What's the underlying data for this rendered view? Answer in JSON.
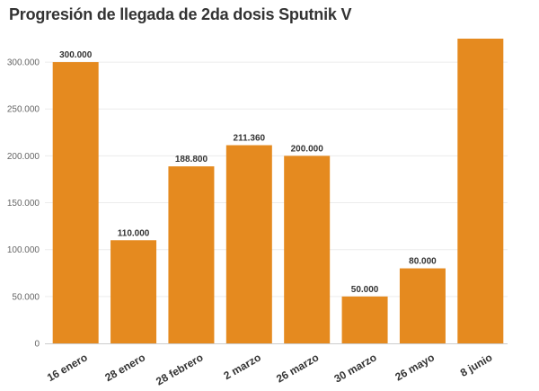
{
  "chart_data": {
    "type": "bar",
    "title": "Progresión de llegada de 2da dosis Sputnik V",
    "xlabel": "",
    "ylabel": "",
    "categories": [
      "16 enero",
      "28 enero",
      "28 febrero",
      "2 marzo",
      "26 marzo",
      "30 marzo",
      "26 mayo",
      "8 junio"
    ],
    "values": [
      300000,
      110000,
      188800,
      211360,
      200000,
      50000,
      80000,
      325000
    ],
    "data_labels": [
      "300.000",
      "110.000",
      "188.800",
      "211.360",
      "200.000",
      "50.000",
      "80.000",
      ""
    ],
    "y_ticks": [
      0,
      50000,
      100000,
      150000,
      200000,
      250000,
      300000
    ],
    "y_tick_labels": [
      "0",
      "50.000",
      "100.000",
      "150.000",
      "200.000",
      "250.000",
      "300.000"
    ],
    "ylim": [
      0,
      325000
    ],
    "grid": true,
    "legend": "none",
    "bar_color": "#e58a1f",
    "grid_color": "#ececec",
    "axis_color": "#cccccc"
  }
}
